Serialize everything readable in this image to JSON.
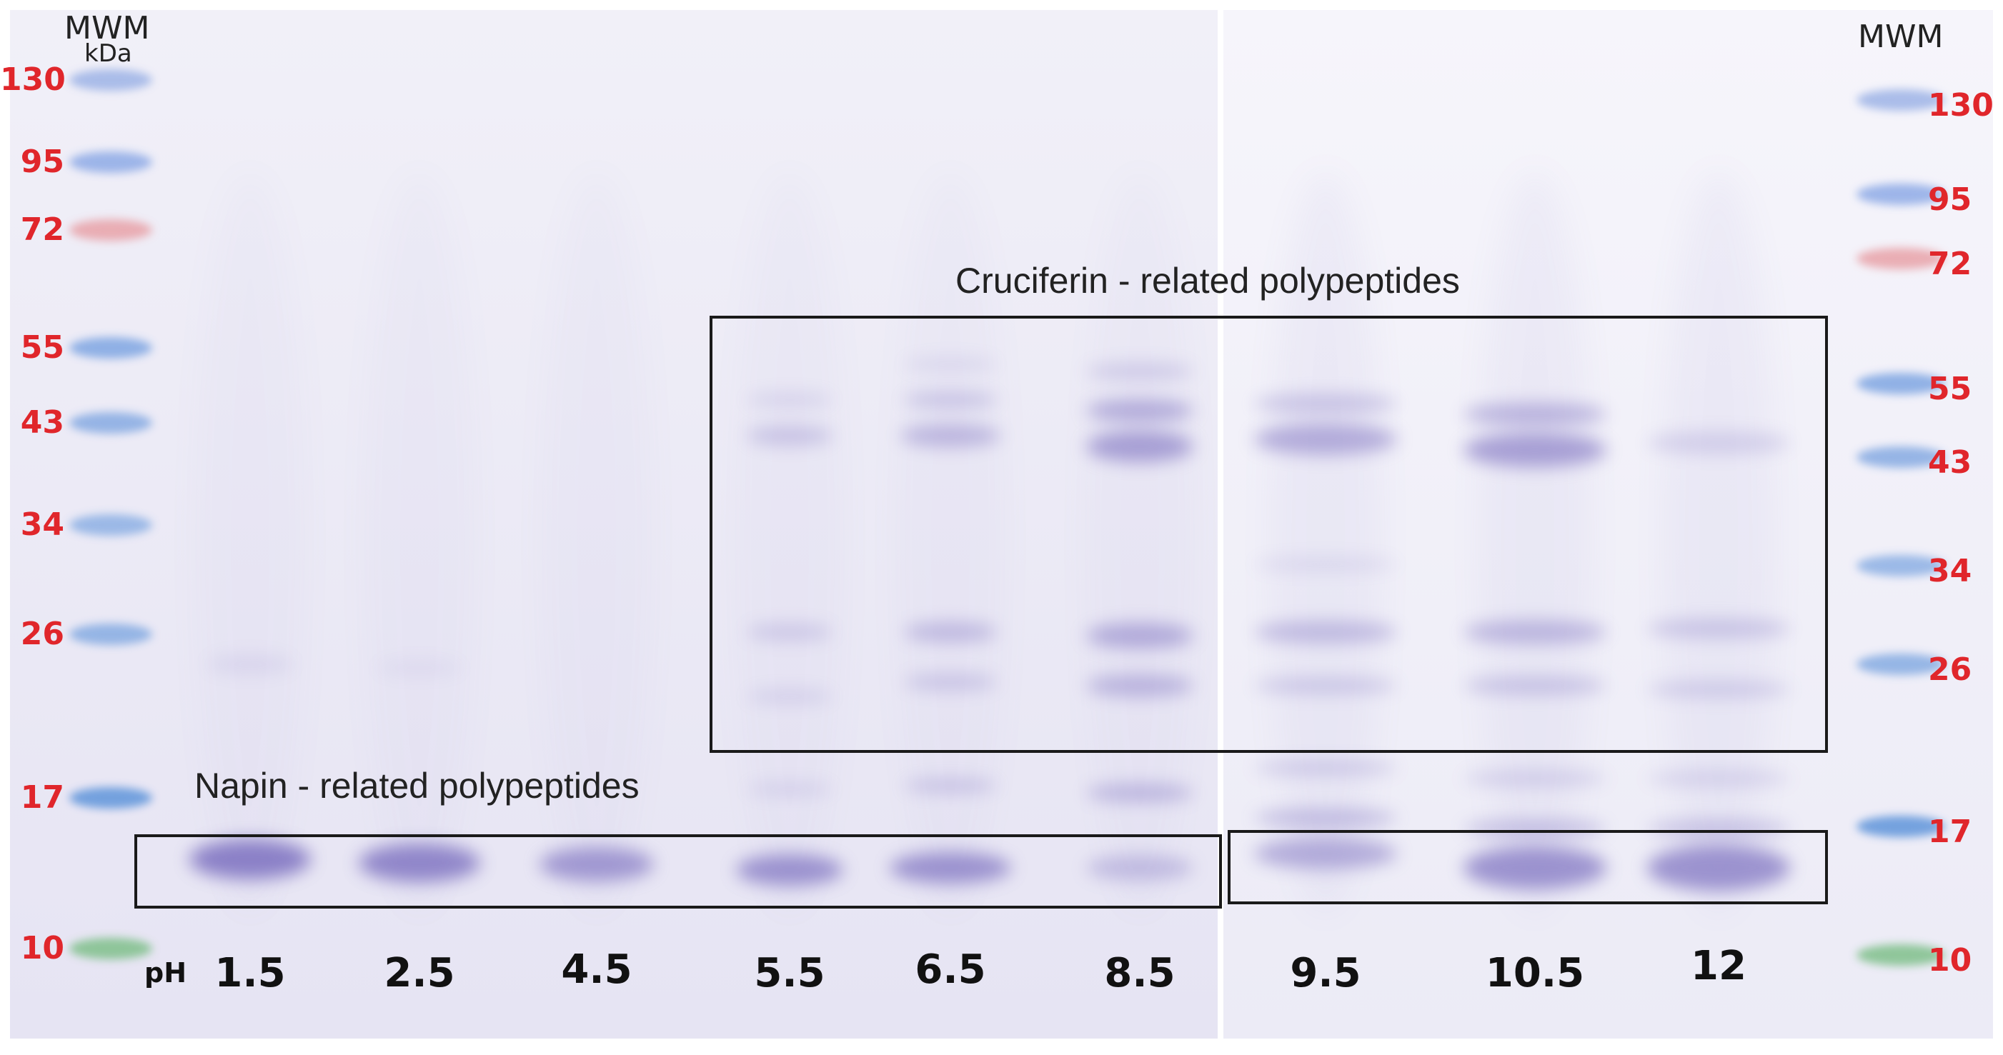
{
  "figure": {
    "ladder": {
      "title": "MWM",
      "unit": "kDa",
      "markers": [
        {
          "kda": "130",
          "color": "#9db3e6"
        },
        {
          "kda": "95",
          "color": "#8eaae6"
        },
        {
          "kda": "72",
          "color": "#e8a2a8"
        },
        {
          "kda": "55",
          "color": "#7fa6e2"
        },
        {
          "kda": "43",
          "color": "#86aae2"
        },
        {
          "kda": "34",
          "color": "#8db0e4"
        },
        {
          "kda": "26",
          "color": "#86ace2"
        },
        {
          "kda": "17",
          "color": "#5f94da"
        },
        {
          "kda": "10",
          "color": "#7fc08a"
        }
      ],
      "label_color": "#e0262b"
    },
    "ph_prefix": "pH",
    "lanes": [
      "1.5",
      "2.5",
      "4.5",
      "5.5",
      "6.5",
      "8.5",
      "9.5",
      "10.5",
      "12"
    ],
    "regions": {
      "cruciferin": "Cruciferin - related polypeptides",
      "napin": "Napin - related polypeptides"
    },
    "colors": {
      "gel_left": "#eceaf6",
      "gel_right": "#f1eff8",
      "band": "#7b6fc0",
      "box": "#1a1a1a"
    }
  }
}
